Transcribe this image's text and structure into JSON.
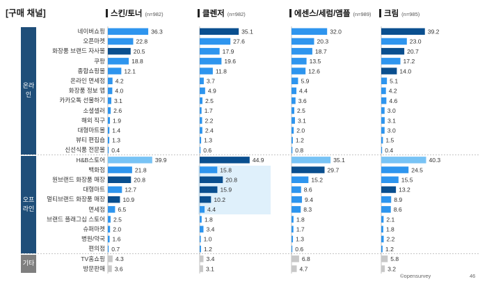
{
  "page_title": "[구매 채널]",
  "sections": [
    {
      "label": "온라\n인",
      "rows": 13
    },
    {
      "label": "오프\n라인",
      "rows": 10
    },
    {
      "label": "기타",
      "rows": 2
    }
  ],
  "footer": "©opensurvey",
  "page_number": "46",
  "colors": {
    "highlight": "#0a4f8f",
    "normal": "#2e95ee",
    "light": "#78c3f5",
    "gray": "#c8c8c8",
    "band": "#dff0fb"
  },
  "chart_data": {
    "type": "bar",
    "orientation": "horizontal",
    "categories": [
      "네이버쇼핑",
      "오픈마켓",
      "화장품 브랜드 자사몰",
      "쿠팡",
      "종합쇼핑몰",
      "온라인 면세점",
      "화장품 정보 앱",
      "카카오톡 선물하기",
      "소셜셀러",
      "해외 직구",
      "대형마트몰",
      "뷰티 편집숍",
      "신선식품 전문몰",
      "H&B스토어",
      "백화점",
      "원브랜드 화장품 매장",
      "대형마트",
      "멀티브랜드 화장품 매장",
      "면세점",
      "브랜드 플래그십 스토어",
      "슈퍼마켓",
      "병원/약국",
      "편의점",
      "TV홈쇼핑",
      "방문판매"
    ],
    "series": [
      {
        "name": "스킨/토너",
        "n": "(n=982)",
        "values": [
          36.3,
          22.8,
          20.5,
          18.8,
          12.1,
          4.2,
          4.0,
          3.1,
          2.6,
          1.9,
          1.4,
          1.3,
          0.4,
          39.9,
          21.8,
          20.8,
          12.7,
          10.9,
          6.5,
          2.5,
          2.0,
          1.6,
          0.7,
          4.3,
          3.6
        ],
        "labels": [
          "36.3",
          "22.8",
          "20.5",
          "18.8",
          "12.1",
          "4.2",
          "4.0",
          "3.1",
          "2.6",
          "1.9",
          "1.4",
          "1.3",
          "0.4",
          "39.9",
          "21.8",
          "20.8",
          "12.7",
          "10.9",
          "6.5",
          "2.5",
          "2.0",
          "1.6",
          "0.7",
          "4.3",
          "3.6"
        ]
      },
      {
        "name": "클렌저",
        "n": "(n=982)",
        "values": [
          35.1,
          27.6,
          17.9,
          19.6,
          11.8,
          3.7,
          4.9,
          2.5,
          1.7,
          2.2,
          2.4,
          1.3,
          0.6,
          44.9,
          15.8,
          20.8,
          15.9,
          10.2,
          4.4,
          1.8,
          3.4,
          1.0,
          1.2,
          3.4,
          3.1
        ],
        "labels": [
          "35.1",
          "27.6",
          "17.9",
          "19.6",
          "11.8",
          "3.7",
          "4.9",
          "2.5",
          "1.7",
          "2.2",
          "2.4",
          "1.3",
          "0.6",
          "44.9",
          "15.8",
          "20.8",
          "15.9",
          "10.2",
          "4.4",
          "1.8",
          "3.4",
          "1.0",
          "1.2",
          "3.4",
          "3.1"
        ]
      },
      {
        "name": "에센스/세럼/앰플",
        "n": "(n=989)",
        "values": [
          32.0,
          20.3,
          18.7,
          13.5,
          12.6,
          5.9,
          4.4,
          3.6,
          2.5,
          3.1,
          2.0,
          1.2,
          0.8,
          35.1,
          29.7,
          15.2,
          8.6,
          9.4,
          8.3,
          1.8,
          1.7,
          1.3,
          0.6,
          6.8,
          4.7
        ],
        "labels": [
          "32.0",
          "20.3",
          "18.7",
          "13.5",
          "12.6",
          "5.9",
          "4.4",
          "3.6",
          "2.5",
          "3.1",
          "2.0",
          "1.2",
          "0.8",
          "35.1",
          "29.7",
          "15.2",
          "8.6",
          "9.4",
          "8.3",
          "1.8",
          "1.7",
          "1.3",
          "0.6",
          "6.8",
          "4.7"
        ]
      },
      {
        "name": "크림",
        "n": "(n=985)",
        "values": [
          39.2,
          23.0,
          20.7,
          17.2,
          14.0,
          5.1,
          4.2,
          4.6,
          3.0,
          3.1,
          3.0,
          1.5,
          0.4,
          40.3,
          24.5,
          15.5,
          13.2,
          8.9,
          8.6,
          2.1,
          1.8,
          2.2,
          1.2,
          5.8,
          3.2
        ],
        "labels": [
          "39.2",
          "23.0",
          "20.7",
          "17.2",
          "14.0",
          "5.1",
          "4.2",
          "4.6",
          "3.0",
          "3.1",
          "3.0",
          "1.5",
          "0.4",
          "40.3",
          "24.5",
          "15.5",
          "13.2",
          "8.9",
          "8.6",
          "2.1",
          "1.8",
          "2.2",
          "1.2",
          "5.8",
          "3.2"
        ]
      }
    ],
    "color_codes": [
      [
        "N",
        "N",
        "H",
        "N",
        "N",
        "N",
        "N",
        "N",
        "N",
        "N",
        "N",
        "N",
        "N",
        "L",
        "N",
        "H",
        "N",
        "H",
        "N",
        "N",
        "N",
        "N",
        "N",
        "G",
        "G"
      ],
      [
        "H",
        "N",
        "N",
        "N",
        "N",
        "N",
        "N",
        "N",
        "N",
        "N",
        "N",
        "N",
        "N",
        "H",
        "N",
        "H",
        "H",
        "H",
        "N",
        "N",
        "N",
        "N",
        "N",
        "G",
        "G"
      ],
      [
        "N",
        "N",
        "N",
        "N",
        "N",
        "N",
        "N",
        "N",
        "N",
        "N",
        "N",
        "N",
        "N",
        "L",
        "H",
        "N",
        "N",
        "N",
        "N",
        "N",
        "N",
        "N",
        "N",
        "G",
        "G"
      ],
      [
        "H",
        "N",
        "H",
        "N",
        "H",
        "N",
        "N",
        "N",
        "N",
        "N",
        "N",
        "N",
        "N",
        "L",
        "N",
        "N",
        "H",
        "N",
        "N",
        "N",
        "N",
        "N",
        "N",
        "G",
        "G"
      ]
    ],
    "highlight_band": {
      "series_index": 1,
      "from_row": 14,
      "to_row": 18
    }
  }
}
